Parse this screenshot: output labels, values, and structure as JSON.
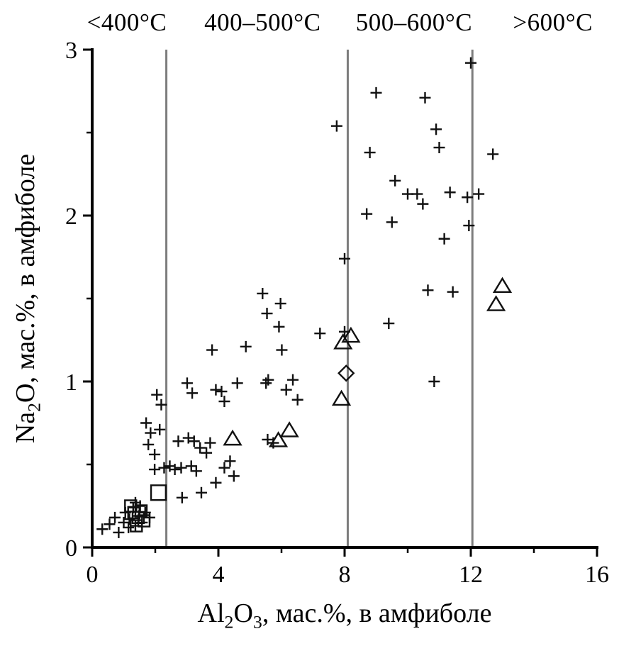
{
  "chart_data": {
    "type": "scatter",
    "title": "",
    "xlabel": "Al2O3, мас.%, в амфиболе",
    "ylabel": "Na2O, мас.%, в амфиболе",
    "xlabel_parts": [
      [
        "t",
        "Al"
      ],
      [
        "s",
        "2"
      ],
      [
        "t",
        "O"
      ],
      [
        "s",
        "3"
      ],
      [
        "t",
        ", мас.%, в амфиболе"
      ]
    ],
    "ylabel_parts": [
      [
        "t",
        "Na"
      ],
      [
        "s",
        "2"
      ],
      [
        "t",
        "O, мас.%, в амфиболе"
      ]
    ],
    "xlim": [
      0,
      16
    ],
    "ylim": [
      0,
      3
    ],
    "x_ticks": [
      0,
      4,
      8,
      12,
      16
    ],
    "x_minor_ticks": [
      2,
      6,
      10,
      14
    ],
    "y_ticks": [
      0,
      1,
      2,
      3
    ],
    "y_minor_ticks": [
      0.5,
      1.5,
      2.5
    ],
    "grid": false,
    "legend": false,
    "temperature_zone_lines_x": [
      2.35,
      8.1,
      12.05
    ],
    "zone_labels": [
      {
        "text": "<400°C",
        "x": 1.1
      },
      {
        "text": "400–500°C",
        "x": 5.4
      },
      {
        "text": "500–600°C",
        "x": 10.2
      },
      {
        "text": ">600°C",
        "x": 14.6
      }
    ],
    "colors": {
      "marker": "#111111",
      "zone_line": "#7d7d7d",
      "axis": "#000000",
      "background": "#ffffff"
    },
    "series": [
      {
        "name": "amphibole-analyses-plus",
        "marker": "plus",
        "points": [
          [
            0.32,
            0.11
          ],
          [
            0.55,
            0.14
          ],
          [
            0.72,
            0.18
          ],
          [
            0.84,
            0.09
          ],
          [
            1.0,
            0.15
          ],
          [
            1.05,
            0.21
          ],
          [
            1.15,
            0.12
          ],
          [
            1.18,
            0.17
          ],
          [
            1.3,
            0.24
          ],
          [
            1.37,
            0.13
          ],
          [
            1.37,
            0.27
          ],
          [
            1.48,
            0.19
          ],
          [
            1.52,
            0.25
          ],
          [
            1.58,
            0.15
          ],
          [
            1.68,
            0.21
          ],
          [
            1.82,
            0.18
          ],
          [
            1.71,
            0.75
          ],
          [
            1.85,
            0.69
          ],
          [
            1.78,
            0.62
          ],
          [
            2.14,
            0.71
          ],
          [
            1.98,
            0.56
          ],
          [
            2.05,
            0.92
          ],
          [
            2.19,
            0.86
          ],
          [
            1.98,
            0.47
          ],
          [
            2.28,
            0.48
          ],
          [
            2.46,
            0.49
          ],
          [
            2.62,
            0.47
          ],
          [
            2.82,
            0.48
          ],
          [
            3.14,
            0.49
          ],
          [
            3.3,
            0.46
          ],
          [
            2.73,
            0.64
          ],
          [
            3.05,
            0.66
          ],
          [
            3.23,
            0.64
          ],
          [
            3.42,
            0.6
          ],
          [
            3.62,
            0.57
          ],
          [
            3.74,
            0.63
          ],
          [
            2.85,
            0.3
          ],
          [
            3.46,
            0.33
          ],
          [
            3.92,
            0.39
          ],
          [
            4.19,
            0.48
          ],
          [
            4.37,
            0.52
          ],
          [
            4.49,
            0.43
          ],
          [
            5.56,
            0.65
          ],
          [
            5.74,
            0.63
          ],
          [
            4.19,
            0.88
          ],
          [
            3.01,
            0.99
          ],
          [
            3.17,
            0.93
          ],
          [
            3.8,
            1.19
          ],
          [
            3.92,
            0.95
          ],
          [
            4.1,
            0.94
          ],
          [
            4.6,
            0.99
          ],
          [
            4.87,
            1.21
          ],
          [
            5.51,
            0.99
          ],
          [
            5.58,
            1.01
          ],
          [
            6.15,
            0.95
          ],
          [
            6.36,
            1.01
          ],
          [
            6.51,
            0.89
          ],
          [
            5.4,
            1.53
          ],
          [
            5.54,
            1.41
          ],
          [
            5.97,
            1.47
          ],
          [
            5.92,
            1.33
          ],
          [
            6.01,
            1.19
          ],
          [
            7.22,
            1.29
          ],
          [
            8.0,
            1.3
          ],
          [
            7.75,
            2.54
          ],
          [
            8.0,
            1.74
          ],
          [
            8.7,
            2.01
          ],
          [
            8.8,
            2.38
          ],
          [
            9.0,
            2.74
          ],
          [
            9.4,
            1.35
          ],
          [
            9.5,
            1.96
          ],
          [
            9.6,
            2.21
          ],
          [
            10.0,
            2.13
          ],
          [
            10.3,
            2.13
          ],
          [
            10.48,
            2.07
          ],
          [
            10.55,
            2.71
          ],
          [
            10.64,
            1.55
          ],
          [
            10.84,
            1.0
          ],
          [
            11.0,
            2.41
          ],
          [
            10.9,
            2.52
          ],
          [
            11.16,
            1.86
          ],
          [
            11.34,
            2.14
          ],
          [
            11.43,
            1.54
          ],
          [
            11.89,
            2.11
          ],
          [
            11.94,
            1.94
          ],
          [
            12.0,
            2.92
          ],
          [
            12.25,
            2.13
          ],
          [
            12.7,
            2.37
          ]
        ]
      },
      {
        "name": "amphibole-analyses-triangle",
        "marker": "triangle-open",
        "points": [
          [
            4.45,
            0.65
          ],
          [
            5.9,
            0.64
          ],
          [
            6.25,
            0.7
          ],
          [
            7.9,
            0.89
          ],
          [
            7.95,
            1.23
          ],
          [
            8.2,
            1.27
          ],
          [
            12.8,
            1.46
          ],
          [
            13.0,
            1.57
          ]
        ]
      },
      {
        "name": "amphibole-analyses-square",
        "marker": "square-open",
        "points": [
          [
            1.22,
            0.25
          ],
          [
            1.32,
            0.21
          ],
          [
            1.46,
            0.18
          ],
          [
            1.55,
            0.22
          ],
          [
            1.64,
            0.16
          ],
          [
            1.4,
            0.13
          ],
          [
            2.1,
            0.33,
            1.3
          ]
        ]
      },
      {
        "name": "amphibole-analyses-diamond",
        "marker": "diamond-open",
        "points": [
          [
            8.05,
            1.05
          ]
        ]
      }
    ]
  }
}
